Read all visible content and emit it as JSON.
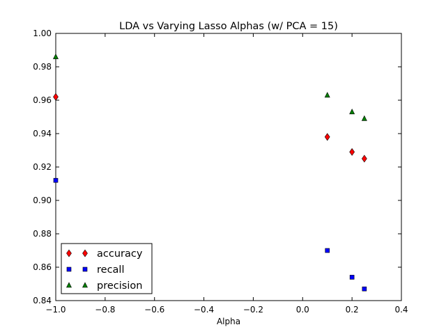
{
  "chart_data": {
    "type": "scatter",
    "title": "LDA vs Varying Lasso Alphas (w/ PCA = 15)",
    "xlabel": "Alpha",
    "ylabel": "",
    "xlim": [
      -1.0,
      0.4
    ],
    "ylim": [
      0.84,
      1.0
    ],
    "xticks": [
      -1.0,
      -0.8,
      -0.6,
      -0.4,
      -0.2,
      0.0,
      0.2,
      0.4
    ],
    "xtick_labels": [
      "−1.0",
      "−0.8",
      "−0.6",
      "−0.4",
      "−0.2",
      "0.0",
      "0.2",
      "0.4"
    ],
    "yticks": [
      0.84,
      0.86,
      0.88,
      0.9,
      0.92,
      0.94,
      0.96,
      0.98,
      1.0
    ],
    "ytick_labels": [
      "0.84",
      "0.86",
      "0.88",
      "0.90",
      "0.92",
      "0.94",
      "0.96",
      "0.98",
      "1.00"
    ],
    "grid": false,
    "legend_position": "lower-left",
    "series": [
      {
        "name": "accuracy",
        "marker": "diamond",
        "color": "#ff0000",
        "x": [
          -1.0,
          0.1,
          0.2,
          0.25
        ],
        "y": [
          0.962,
          0.938,
          0.929,
          0.925
        ]
      },
      {
        "name": "recall",
        "marker": "square",
        "color": "#0000ff",
        "x": [
          -1.0,
          0.1,
          0.2,
          0.25
        ],
        "y": [
          0.912,
          0.87,
          0.854,
          0.847
        ]
      },
      {
        "name": "precision",
        "marker": "triangle",
        "color": "#008000",
        "x": [
          -1.0,
          0.1,
          0.2,
          0.25
        ],
        "y": [
          0.986,
          0.963,
          0.953,
          0.949
        ]
      }
    ]
  }
}
